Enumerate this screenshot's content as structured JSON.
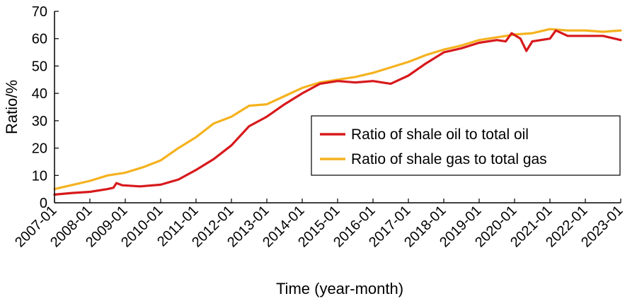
{
  "chart_data": {
    "type": "line",
    "title": "",
    "xlabel": "Time (year-month)",
    "ylabel": "Ratio/%",
    "ylim": [
      0,
      70
    ],
    "yticks": [
      0,
      10,
      20,
      30,
      40,
      50,
      60,
      70
    ],
    "xlim": [
      "2007-01",
      "2023-01"
    ],
    "xticks": [
      "2007-01",
      "2008-01",
      "2009-01",
      "2010-01",
      "2011-01",
      "2012-01",
      "2013-01",
      "2014-01",
      "2015-01",
      "2016-01",
      "2017-01",
      "2018-01",
      "2019-01",
      "2020-01",
      "2021-01",
      "2022-01",
      "2023-01"
    ],
    "grid": false,
    "legend": "right",
    "series": [
      {
        "name": "Ratio of shale oil to total oil",
        "color": "#d7191c",
        "points": [
          [
            "2007-01",
            3.0
          ],
          [
            "2007-07",
            3.6
          ],
          [
            "2008-01",
            4.0
          ],
          [
            "2008-07",
            5.0
          ],
          [
            "2008-09",
            5.5
          ],
          [
            "2008-10",
            7.2
          ],
          [
            "2008-12",
            6.4
          ],
          [
            "2009-06",
            6.0
          ],
          [
            "2010-01",
            6.6
          ],
          [
            "2010-07",
            8.5
          ],
          [
            "2011-01",
            12.0
          ],
          [
            "2011-07",
            16.0
          ],
          [
            "2012-01",
            21.0
          ],
          [
            "2012-07",
            28.0
          ],
          [
            "2013-01",
            31.5
          ],
          [
            "2013-07",
            36.0
          ],
          [
            "2014-01",
            40.0
          ],
          [
            "2014-07",
            43.5
          ],
          [
            "2015-01",
            44.5
          ],
          [
            "2015-07",
            44.0
          ],
          [
            "2016-01",
            44.5
          ],
          [
            "2016-07",
            43.5
          ],
          [
            "2017-01",
            46.5
          ],
          [
            "2017-07",
            51.0
          ],
          [
            "2018-01",
            55.0
          ],
          [
            "2018-07",
            56.5
          ],
          [
            "2019-01",
            58.5
          ],
          [
            "2019-07",
            59.5
          ],
          [
            "2019-10",
            59.0
          ],
          [
            "2019-12",
            62.0
          ],
          [
            "2020-03",
            60.0
          ],
          [
            "2020-05",
            55.5
          ],
          [
            "2020-07",
            59.0
          ],
          [
            "2021-01",
            60.0
          ],
          [
            "2021-03",
            63.0
          ],
          [
            "2021-07",
            61.0
          ],
          [
            "2022-01",
            61.0
          ],
          [
            "2022-07",
            61.0
          ],
          [
            "2023-01",
            59.5
          ]
        ]
      },
      {
        "name": "Ratio of shale gas to total gas",
        "color": "#f5b21f",
        "points": [
          [
            "2007-01",
            5.0
          ],
          [
            "2007-07",
            6.5
          ],
          [
            "2008-01",
            8.0
          ],
          [
            "2008-07",
            10.0
          ],
          [
            "2009-01",
            11.0
          ],
          [
            "2009-07",
            13.0
          ],
          [
            "2010-01",
            15.5
          ],
          [
            "2010-07",
            20.0
          ],
          [
            "2011-01",
            24.0
          ],
          [
            "2011-07",
            29.0
          ],
          [
            "2012-01",
            31.5
          ],
          [
            "2012-07",
            35.5
          ],
          [
            "2013-01",
            36.0
          ],
          [
            "2013-07",
            39.0
          ],
          [
            "2014-01",
            42.0
          ],
          [
            "2014-07",
            44.0
          ],
          [
            "2015-01",
            45.0
          ],
          [
            "2015-07",
            46.0
          ],
          [
            "2016-01",
            47.5
          ],
          [
            "2016-07",
            49.5
          ],
          [
            "2017-01",
            51.5
          ],
          [
            "2017-07",
            54.0
          ],
          [
            "2018-01",
            56.0
          ],
          [
            "2018-07",
            57.5
          ],
          [
            "2019-01",
            59.5
          ],
          [
            "2019-07",
            60.5
          ],
          [
            "2020-01",
            61.5
          ],
          [
            "2020-07",
            62.0
          ],
          [
            "2021-01",
            63.5
          ],
          [
            "2021-07",
            63.0
          ],
          [
            "2022-01",
            63.0
          ],
          [
            "2022-07",
            62.5
          ],
          [
            "2023-01",
            63.0
          ]
        ]
      }
    ]
  }
}
